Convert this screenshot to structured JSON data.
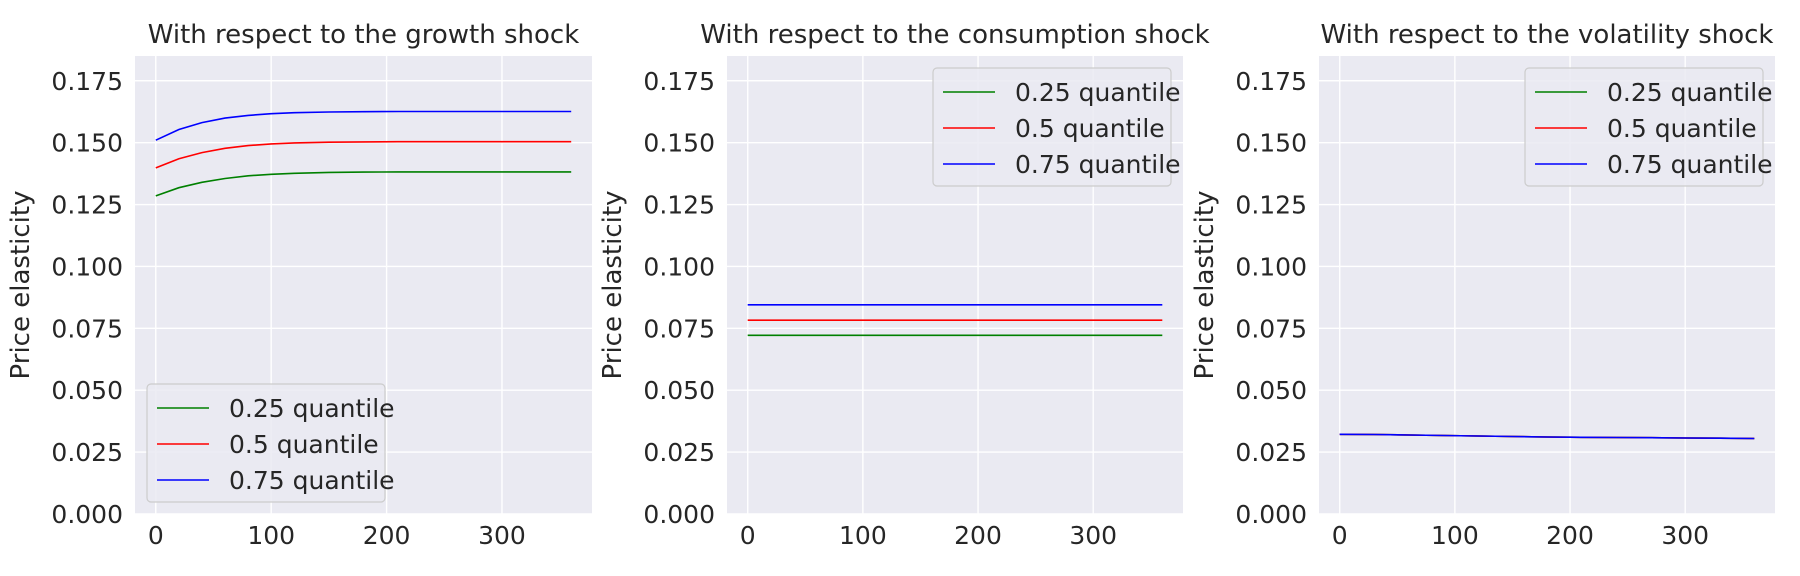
{
  "chart_data": [
    {
      "type": "line",
      "title": "With respect to the growth shock",
      "ylabel": "Price elasticity",
      "xlabel": "",
      "xlim": [
        -18,
        378
      ],
      "ylim": [
        0,
        0.185
      ],
      "xticks": [
        0,
        100,
        200,
        300
      ],
      "yticks": [
        0.0,
        0.025,
        0.05,
        0.075,
        0.1,
        0.125,
        0.15,
        0.175
      ],
      "ytick_labels": [
        "0.000",
        "0.025",
        "0.050",
        "0.075",
        "0.100",
        "0.125",
        "0.150",
        "0.175"
      ],
      "grid": true,
      "legend": "lower-left",
      "x": [
        0,
        20,
        40,
        60,
        80,
        100,
        120,
        150,
        180,
        210,
        240,
        270,
        300,
        330,
        360
      ],
      "series": [
        {
          "name": "0.25 quantile",
          "color": "#008000",
          "values": [
            0.1285,
            0.1318,
            0.134,
            0.1355,
            0.1366,
            0.1372,
            0.1376,
            0.138,
            0.1381,
            0.1382,
            0.1382,
            0.1382,
            0.1382,
            0.1382,
            0.1382
          ]
        },
        {
          "name": "0.5 quantile",
          "color": "#ff0000",
          "values": [
            0.1398,
            0.1435,
            0.146,
            0.1477,
            0.1488,
            0.1495,
            0.1499,
            0.1502,
            0.1503,
            0.1504,
            0.1504,
            0.1504,
            0.1504,
            0.1504,
            0.1504
          ]
        },
        {
          "name": "0.75 quantile",
          "color": "#0000ff",
          "values": [
            0.151,
            0.1553,
            0.1581,
            0.1599,
            0.161,
            0.1617,
            0.1621,
            0.1624,
            0.1625,
            0.1626,
            0.1626,
            0.1626,
            0.1626,
            0.1626,
            0.1626
          ]
        }
      ]
    },
    {
      "type": "line",
      "title": "With respect to the consumption shock",
      "ylabel": "Price elasticity",
      "xlabel": "",
      "xlim": [
        -18,
        378
      ],
      "ylim": [
        0,
        0.185
      ],
      "xticks": [
        0,
        100,
        200,
        300
      ],
      "yticks": [
        0.0,
        0.025,
        0.05,
        0.075,
        0.1,
        0.125,
        0.15,
        0.175
      ],
      "ytick_labels": [
        "0.000",
        "0.025",
        "0.050",
        "0.075",
        "0.100",
        "0.125",
        "0.150",
        "0.175"
      ],
      "grid": true,
      "legend": "upper-right",
      "x": [
        0,
        360
      ],
      "series": [
        {
          "name": "0.25 quantile",
          "color": "#008000",
          "values": [
            0.0722,
            0.0722
          ]
        },
        {
          "name": "0.5 quantile",
          "color": "#ff0000",
          "values": [
            0.0783,
            0.0783
          ]
        },
        {
          "name": "0.75 quantile",
          "color": "#0000ff",
          "values": [
            0.0845,
            0.0845
          ]
        }
      ]
    },
    {
      "type": "line",
      "title": "With respect to the volatility shock",
      "ylabel": "Price elasticity",
      "xlabel": "",
      "xlim": [
        -18,
        378
      ],
      "ylim": [
        0,
        0.185
      ],
      "xticks": [
        0,
        100,
        200,
        300
      ],
      "yticks": [
        0.0,
        0.025,
        0.05,
        0.075,
        0.1,
        0.125,
        0.15,
        0.175
      ],
      "ytick_labels": [
        "0.000",
        "0.025",
        "0.050",
        "0.075",
        "0.100",
        "0.125",
        "0.150",
        "0.175"
      ],
      "grid": true,
      "legend": "upper-right",
      "x": [
        0,
        30,
        60,
        90,
        120,
        150,
        180,
        210,
        240,
        270,
        300,
        330,
        360
      ],
      "series": [
        {
          "name": "0.25 quantile",
          "color": "#008000",
          "values": [
            0.0322,
            0.0321,
            0.0319,
            0.0317,
            0.0315,
            0.0313,
            0.0311,
            0.031,
            0.0309,
            0.0308,
            0.0307,
            0.0306,
            0.0305
          ]
        },
        {
          "name": "0.5 quantile",
          "color": "#ff0000",
          "values": [
            0.0322,
            0.0321,
            0.0319,
            0.0317,
            0.0315,
            0.0313,
            0.0311,
            0.031,
            0.0309,
            0.0308,
            0.0307,
            0.0306,
            0.0305
          ]
        },
        {
          "name": "0.75 quantile",
          "color": "#0000ff",
          "values": [
            0.0322,
            0.0321,
            0.0319,
            0.0317,
            0.0315,
            0.0313,
            0.0311,
            0.031,
            0.0309,
            0.0308,
            0.0307,
            0.0306,
            0.0305
          ]
        }
      ]
    }
  ]
}
